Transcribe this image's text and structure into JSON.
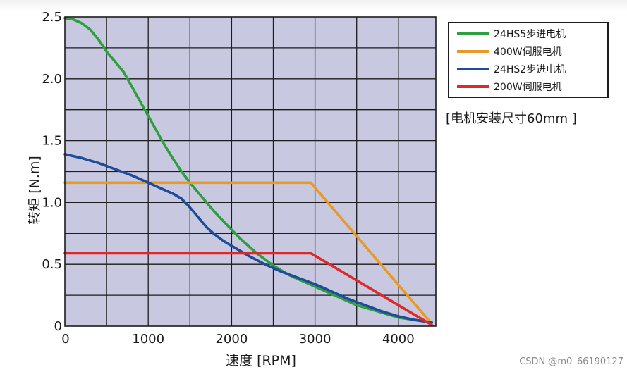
{
  "chart_data": {
    "type": "line",
    "title": "",
    "xlabel": "速度 [RPM]",
    "ylabel": "转矩 [N.m]",
    "xlim": [
      0,
      4450
    ],
    "ylim": [
      0,
      2.5
    ],
    "x_ticks": [
      0,
      1000,
      2000,
      3000,
      4000
    ],
    "y_ticks": [
      0,
      0.5,
      1.0,
      1.5,
      2.0,
      2.5
    ],
    "x_tick_labels": [
      "0",
      "1000",
      "2000",
      "3000",
      "4000"
    ],
    "y_tick_labels": [
      "0",
      "0.5",
      "1.0",
      "1.5",
      "2.0",
      "2.5"
    ],
    "grid": true,
    "legend_position": "top-right, outside plot",
    "plot_background": "#c8c8e1",
    "series": [
      {
        "name": "24HS5步进电机",
        "color": "#2e9e3e",
        "points": [
          [
            0,
            2.49
          ],
          [
            100,
            2.48
          ],
          [
            200,
            2.45
          ],
          [
            300,
            2.4
          ],
          [
            400,
            2.32
          ],
          [
            500,
            2.22
          ],
          [
            600,
            2.14
          ],
          [
            700,
            2.06
          ],
          [
            800,
            1.94
          ],
          [
            900,
            1.82
          ],
          [
            1000,
            1.7
          ],
          [
            1100,
            1.58
          ],
          [
            1200,
            1.46
          ],
          [
            1300,
            1.35
          ],
          [
            1400,
            1.25
          ],
          [
            1500,
            1.16
          ],
          [
            1600,
            1.08
          ],
          [
            1700,
            1.0
          ],
          [
            1800,
            0.92
          ],
          [
            1900,
            0.85
          ],
          [
            2000,
            0.78
          ],
          [
            2100,
            0.71
          ],
          [
            2200,
            0.65
          ],
          [
            2300,
            0.59
          ],
          [
            2400,
            0.54
          ],
          [
            2500,
            0.49
          ],
          [
            2600,
            0.45
          ],
          [
            2700,
            0.41
          ],
          [
            2800,
            0.38
          ],
          [
            2900,
            0.35
          ],
          [
            3000,
            0.32
          ],
          [
            3100,
            0.29
          ],
          [
            3200,
            0.26
          ],
          [
            3300,
            0.23
          ],
          [
            3400,
            0.2
          ],
          [
            3500,
            0.17
          ],
          [
            3600,
            0.15
          ],
          [
            3700,
            0.13
          ],
          [
            3800,
            0.11
          ],
          [
            3900,
            0.09
          ],
          [
            4000,
            0.07
          ],
          [
            4100,
            0.06
          ],
          [
            4200,
            0.05
          ],
          [
            4300,
            0.04
          ],
          [
            4400,
            0.03
          ]
        ]
      },
      {
        "name": "400W伺服电机",
        "color": "#e89a26",
        "points": [
          [
            0,
            1.16
          ],
          [
            2950,
            1.16
          ],
          [
            4400,
            0.02
          ]
        ]
      },
      {
        "name": "24HS2步进电机",
        "color": "#1e4b9a",
        "points": [
          [
            0,
            1.39
          ],
          [
            200,
            1.36
          ],
          [
            400,
            1.32
          ],
          [
            600,
            1.27
          ],
          [
            800,
            1.22
          ],
          [
            1000,
            1.16
          ],
          [
            1100,
            1.13
          ],
          [
            1200,
            1.1
          ],
          [
            1300,
            1.07
          ],
          [
            1400,
            1.03
          ],
          [
            1500,
            0.96
          ],
          [
            1600,
            0.88
          ],
          [
            1700,
            0.8
          ],
          [
            1800,
            0.74
          ],
          [
            1900,
            0.69
          ],
          [
            2000,
            0.65
          ],
          [
            2200,
            0.57
          ],
          [
            2400,
            0.5
          ],
          [
            2600,
            0.44
          ],
          [
            2800,
            0.39
          ],
          [
            3000,
            0.34
          ],
          [
            3200,
            0.28
          ],
          [
            3400,
            0.22
          ],
          [
            3600,
            0.17
          ],
          [
            3800,
            0.12
          ],
          [
            4000,
            0.08
          ],
          [
            4200,
            0.05
          ],
          [
            4400,
            0.03
          ]
        ]
      },
      {
        "name": "200W伺服电机",
        "color": "#e02828",
        "points": [
          [
            0,
            0.59
          ],
          [
            2950,
            0.59
          ],
          [
            4400,
            0.01
          ]
        ]
      }
    ],
    "annotations": [
      "[电机安装尺寸60mm ]"
    ]
  },
  "watermark": "CSDN @m0_66190127"
}
